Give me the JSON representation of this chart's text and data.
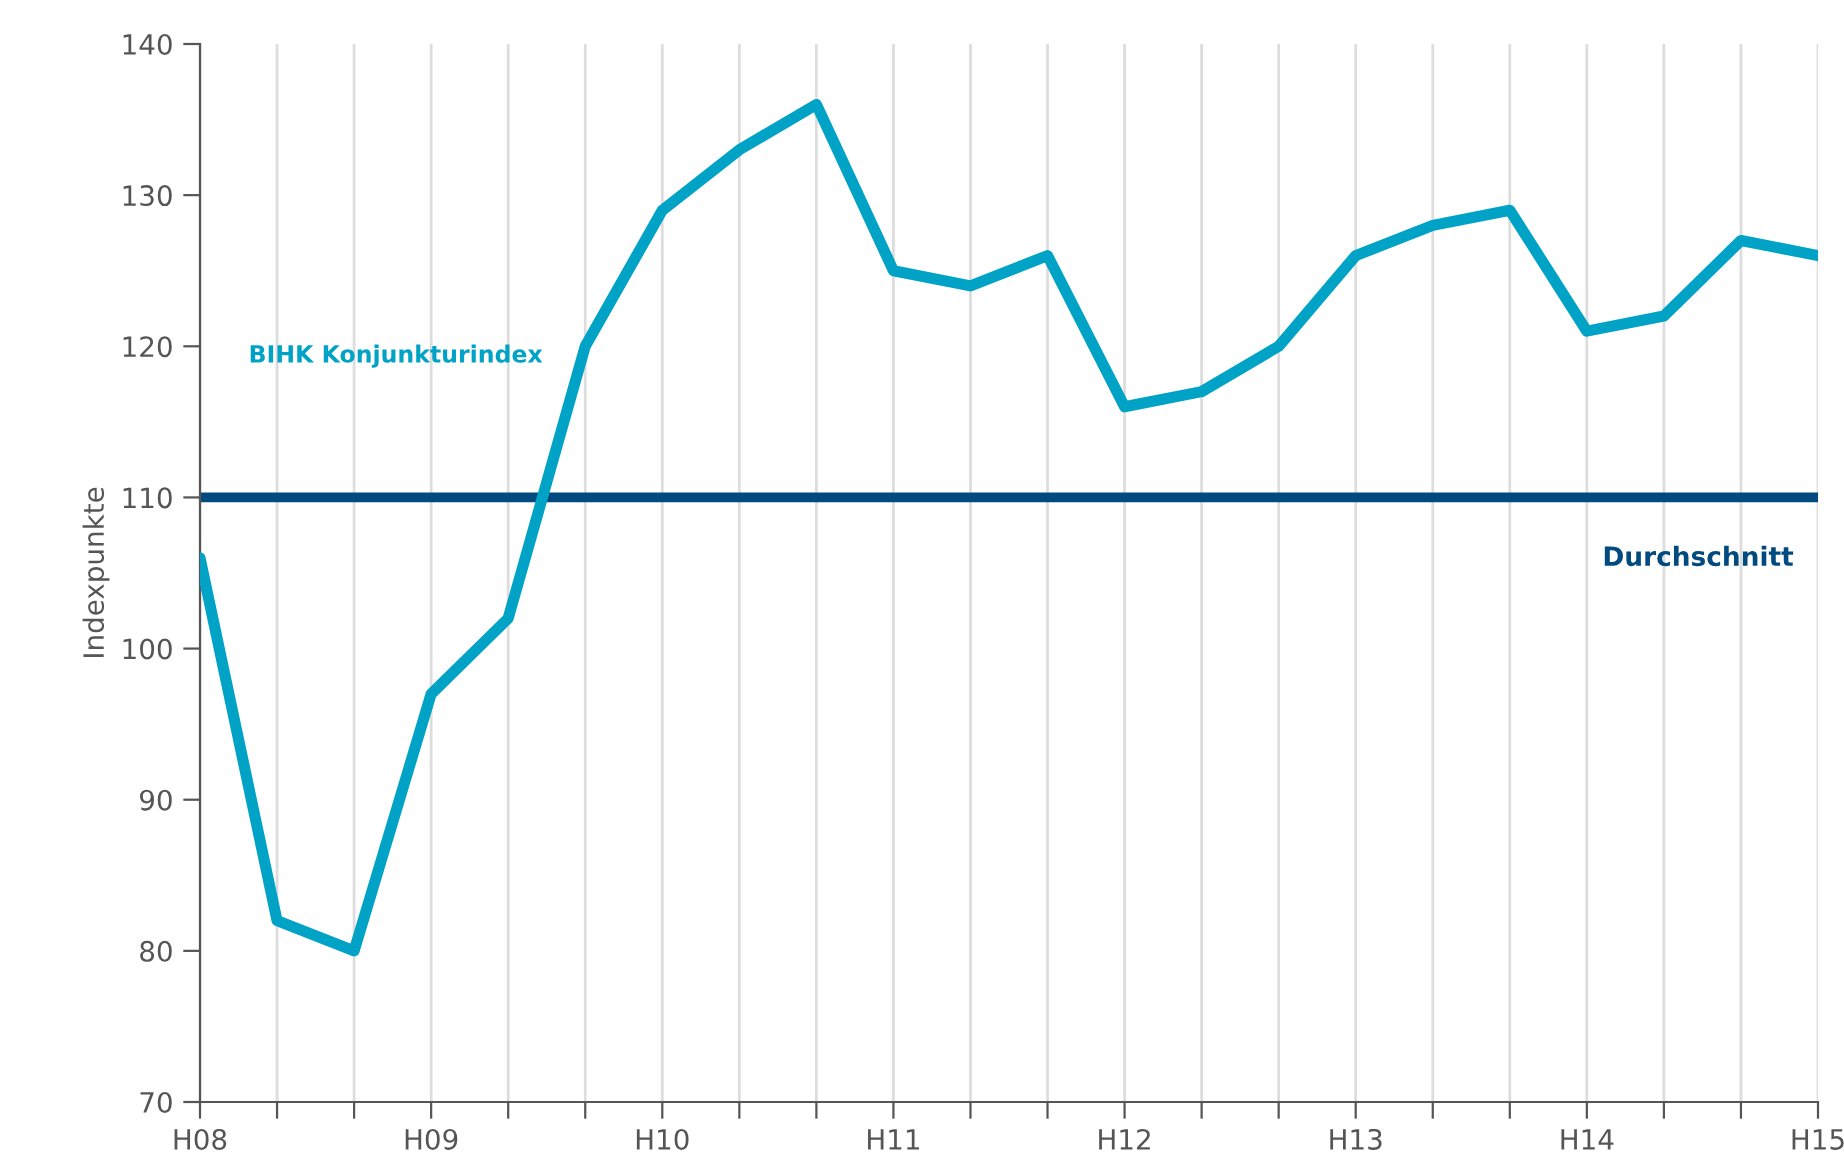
{
  "chart_data": {
    "type": "line",
    "ylabel": "Indexpunkte",
    "categories": [
      "H08",
      null,
      null,
      "H09",
      null,
      null,
      "H10",
      null,
      null,
      "H11",
      null,
      null,
      "H12",
      null,
      null,
      "H13",
      null,
      null,
      "H14",
      null,
      null,
      "H15"
    ],
    "series": [
      {
        "name": "BIHK Konjunkturindex",
        "color": "#00a3c6",
        "values": [
          106,
          82,
          80,
          97,
          102,
          120,
          129,
          133,
          136,
          125,
          124,
          126,
          116,
          117,
          120,
          126,
          128,
          129,
          121,
          122,
          127,
          126
        ]
      }
    ],
    "ylim": [
      70,
      140
    ],
    "yticks": [
      70,
      80,
      90,
      100,
      110,
      120,
      130,
      140
    ],
    "ref_lines": [
      {
        "axis": "y",
        "value": 110,
        "label": "Durchschnitt",
        "color": "#004a7f"
      }
    ],
    "grid": "x",
    "legend": false,
    "marker": "none",
    "line_style": "solid"
  }
}
